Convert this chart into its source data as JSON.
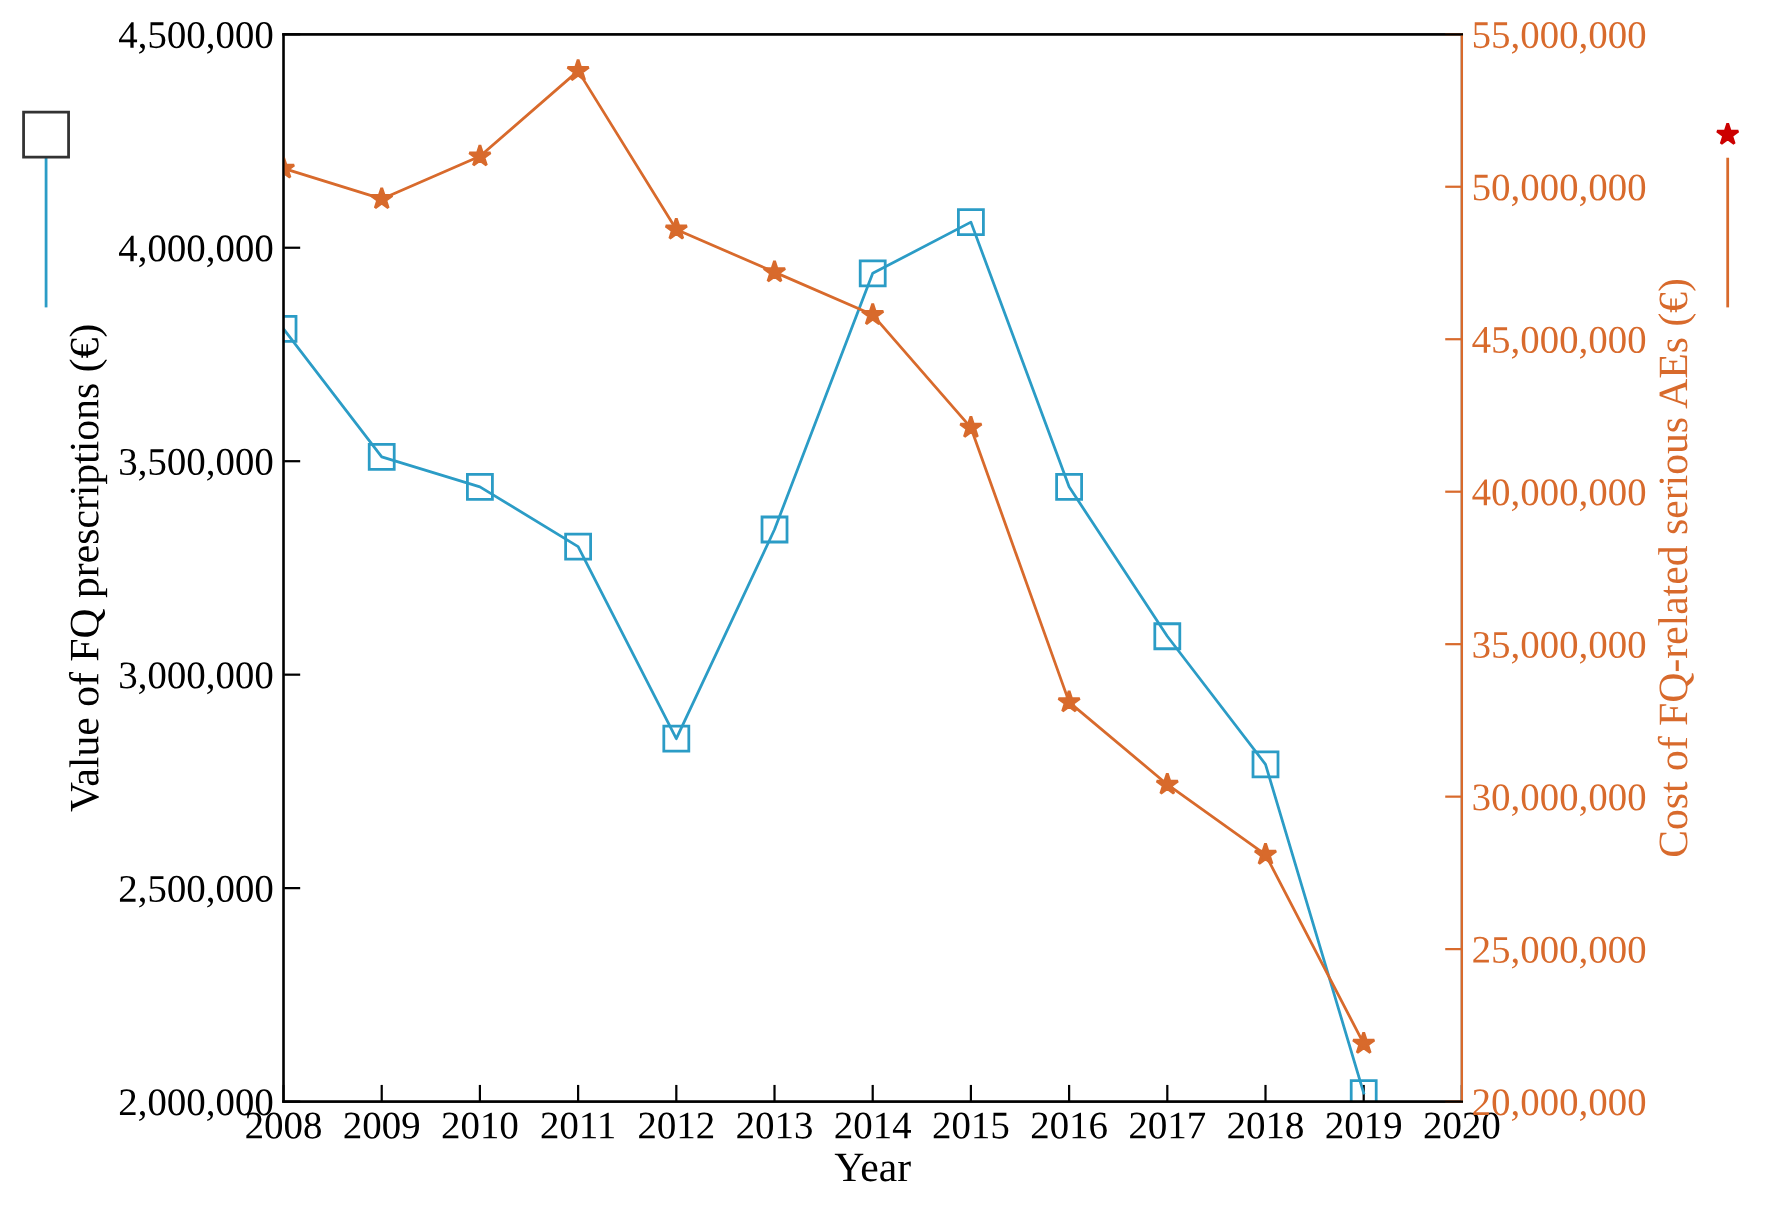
{
  "chart_data": {
    "type": "line",
    "xlabel": "Year",
    "ylabel": "Value of FQ prescriptions (€)",
    "y2label": "Cost of FQ-related serious AEs (€)",
    "x": [
      2008,
      2009,
      2010,
      2011,
      2012,
      2013,
      2014,
      2015,
      2016,
      2017,
      2018,
      2019
    ],
    "series": [
      {
        "color": "#2b9cc6",
        "marker": "square",
        "values": [
          3810000,
          3510000,
          3440000,
          3300000,
          2850000,
          3340000,
          3940000,
          4060000,
          3440000,
          3090000,
          2790000,
          2020000
        ]
      },
      {
        "color": "#d86a2c",
        "marker": "star",
        "axis": "y2",
        "values": [
          50600000,
          49600000,
          51000000,
          53800000,
          48600000,
          47200000,
          45800000,
          42100000,
          33100000,
          30400000,
          28100000,
          21900000
        ]
      }
    ],
    "xlim": [
      2008,
      2020
    ],
    "xticks": [
      2008,
      2009,
      2010,
      2011,
      2012,
      2013,
      2014,
      2015,
      2016,
      2017,
      2018,
      2019,
      2020
    ],
    "ylim": [
      2000000,
      4500000
    ],
    "yticks": [
      {
        "value": 2000000,
        "label": "2,000,000"
      },
      {
        "value": 2500000,
        "label": "2,500,000"
      },
      {
        "value": 3000000,
        "label": "3,000,000"
      },
      {
        "value": 3500000,
        "label": "3,500,000"
      },
      {
        "value": 4000000,
        "label": "4,000,000"
      },
      {
        "value": 4500000,
        "label": "4,500,000"
      }
    ],
    "y2lim": [
      20000000,
      55000000
    ],
    "y2ticks": [
      {
        "value": 20000000,
        "label": "20,000,000"
      },
      {
        "value": 25000000,
        "label": "25,000,000"
      },
      {
        "value": 30000000,
        "label": "30,000,000"
      },
      {
        "value": 35000000,
        "label": "35,000,000"
      },
      {
        "value": 40000000,
        "label": "40,000,000"
      },
      {
        "value": 45000000,
        "label": "45,000,000"
      },
      {
        "value": 50000000,
        "label": "50,000,000"
      },
      {
        "value": 55000000,
        "label": "55,000,000"
      }
    ],
    "grid": false,
    "line_style": "solid"
  }
}
